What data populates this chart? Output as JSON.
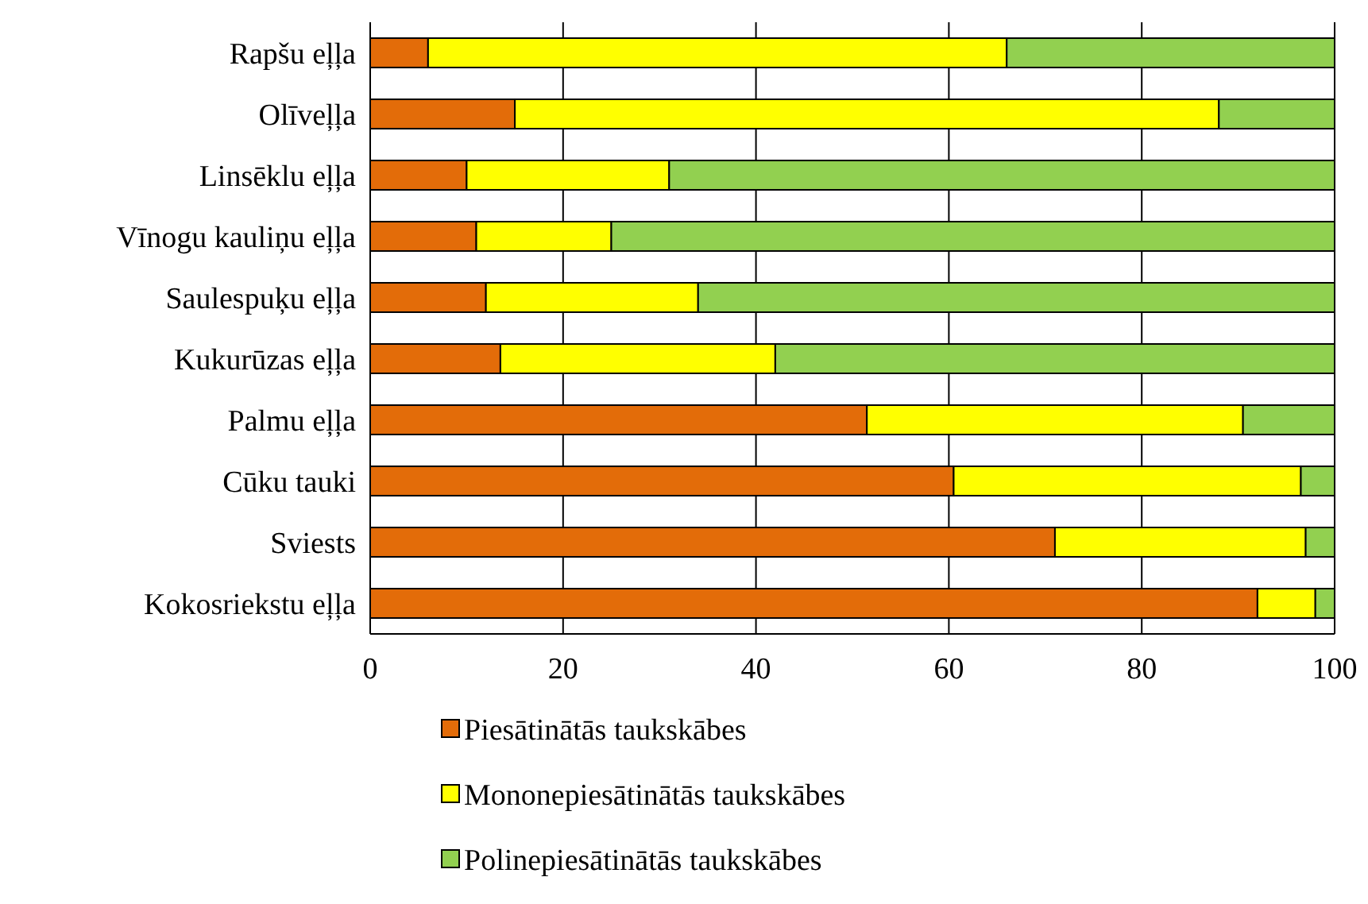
{
  "chart_data": {
    "type": "bar",
    "orientation": "horizontal",
    "stacked": true,
    "categories": [
      "Rapšu eļļa",
      "Olīveļļa",
      "Linsēklu eļļa",
      "Vīnogu kauliņu eļļa",
      "Saulespuķu eļļa",
      "Kukurūzas eļļa",
      "Palmu eļļa",
      "Cūku tauki",
      "Sviests",
      "Kokosriekstu eļļa"
    ],
    "series": [
      {
        "name": "Piesātinātās taukskābes",
        "color": "#e36c09",
        "values": [
          6,
          15,
          10,
          11,
          12,
          13.5,
          51.5,
          60.5,
          71,
          92
        ]
      },
      {
        "name": "Mononepiesātinātās taukskābes",
        "color": "#ffff00",
        "values": [
          60,
          73,
          21,
          14,
          22,
          28.5,
          39,
          36,
          26,
          6
        ]
      },
      {
        "name": "Polinepiesātinātās taukskābes",
        "color": "#92d050",
        "values": [
          34,
          12,
          69,
          75,
          66,
          58,
          9.5,
          3.5,
          3,
          2
        ]
      }
    ],
    "xlim": [
      0,
      100
    ],
    "xticks": [
      0,
      20,
      40,
      60,
      80,
      100
    ],
    "grid": "x",
    "legend": "bottom"
  }
}
